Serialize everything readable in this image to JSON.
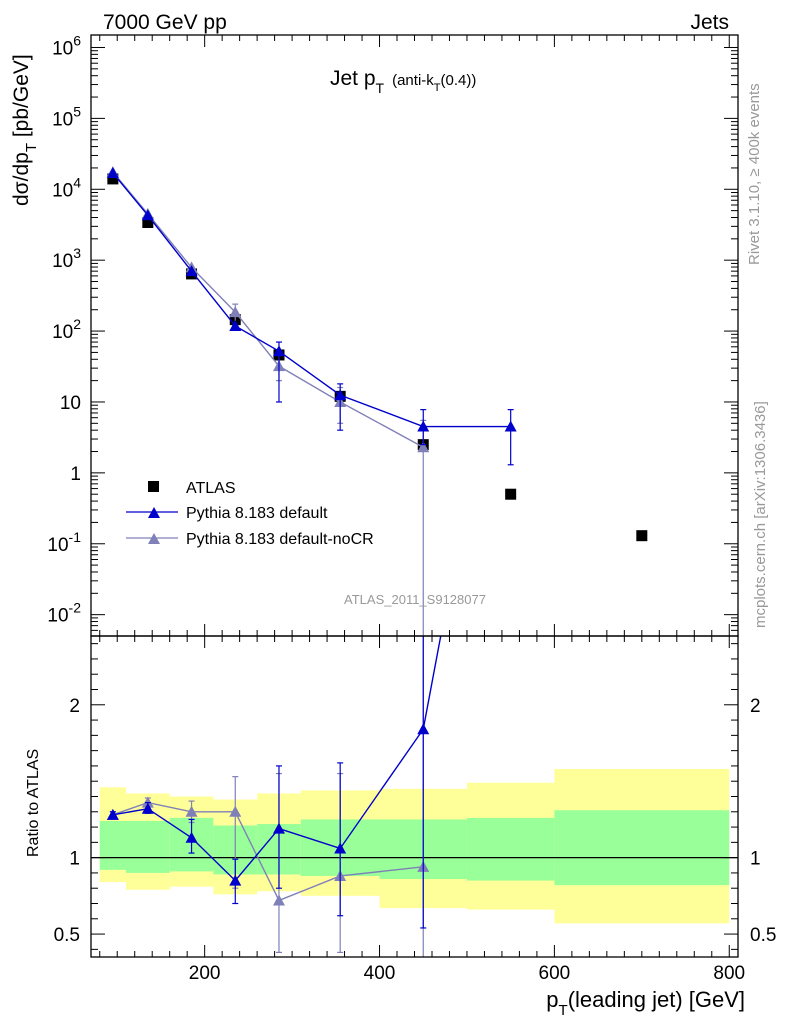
{
  "header": {
    "left": "7000 GeV pp",
    "right": "Jets"
  },
  "side_labels": {
    "rivet": "Rivet 3.1.10, ≥ 400k events",
    "mcplots": "mcplots.cern.ch [arXiv:1306.3436]"
  },
  "analysis_tag": "ATLAS_2011_S9128077",
  "colors": {
    "atlas": "#000000",
    "default": "#0000cc",
    "nocr": "#8080b8",
    "band_inner": "#99ff99",
    "band_outer": "#ffff99"
  },
  "chart_data": [
    {
      "type": "scatter",
      "title": "Jet p_T (anti-k_T(0.4))",
      "title_main": "Jet p",
      "title_sub": "T",
      "title_extra": "(anti-k",
      "title_extra_sub": "T",
      "title_extra_end": "(0.4))",
      "ylabel": "dσ/dp_T [pb/GeV]",
      "yscale": "log",
      "ylim": [
        0.005,
        1500000
      ],
      "xlim": [
        70,
        810
      ],
      "ytick_labels": [
        "10^-2",
        "10^-1",
        "1",
        "10",
        "10^2",
        "10^3",
        "10^4",
        "10^5",
        "10^6"
      ],
      "legend": {
        "position": "lower-left",
        "entries": [
          "ATLAS",
          "Pythia 8.183 default",
          "Pythia 8.183 default-noCR"
        ]
      },
      "series": [
        {
          "name": "ATLAS",
          "marker": "square",
          "x": [
            95,
            135,
            185,
            235,
            285,
            355,
            450,
            550,
            700
          ],
          "values": [
            14000,
            3400,
            640,
            145,
            46,
            12,
            2.5,
            0.5,
            0.13
          ]
        },
        {
          "name": "Pythia 8.183 default",
          "marker": "triangle",
          "x": [
            95,
            135,
            185,
            235,
            285,
            355,
            450,
            550
          ],
          "values": [
            17000,
            4300,
            700,
            118,
            52,
            12.5,
            4.5,
            4.5
          ],
          "err_low": [
            0,
            0,
            0,
            0,
            10,
            4,
            2.5,
            1.3
          ],
          "err_high": [
            0,
            0,
            0,
            0,
            70,
            18,
            7.8,
            7.8
          ]
        },
        {
          "name": "Pythia 8.183 default-noCR",
          "marker": "triangle",
          "x": [
            95,
            135,
            185,
            235,
            285,
            355,
            450
          ],
          "values": [
            17500,
            4500,
            790,
            185,
            32,
            10,
            2.3
          ],
          "err_low": [
            0,
            0,
            0,
            120,
            20,
            5,
            0.0001
          ],
          "err_high": [
            0,
            0,
            0,
            240,
            50,
            16,
            5.5
          ]
        }
      ]
    },
    {
      "type": "scatter",
      "ylabel": "Ratio to ATLAS",
      "xlabel": "p_T(leading jet) [GeV]",
      "xlabel_main": "p",
      "xlabel_sub": "T",
      "xlabel_end": "(leading jet) [GeV]",
      "ylim": [
        0.35,
        2.45
      ],
      "xlim": [
        70,
        810
      ],
      "xticks": [
        200,
        400,
        600,
        800
      ],
      "xtick_labels": [
        "200",
        "400",
        "600",
        "800"
      ],
      "yticks": [
        0.5,
        1,
        2
      ],
      "ytick_labels": [
        "0.5",
        "1",
        "2"
      ],
      "reference": 1,
      "bands": {
        "x_edges": [
          80,
          110,
          160,
          210,
          260,
          310,
          400,
          500,
          600,
          800
        ],
        "outer_low": [
          0.84,
          0.79,
          0.81,
          0.76,
          0.78,
          0.75,
          0.67,
          0.66,
          0.57
        ],
        "outer_high": [
          1.46,
          1.42,
          1.4,
          1.38,
          1.42,
          1.44,
          1.45,
          1.49,
          1.58
        ],
        "inner_low": [
          0.92,
          0.9,
          0.91,
          0.89,
          0.89,
          0.88,
          0.86,
          0.85,
          0.82
        ],
        "inner_high": [
          1.24,
          1.24,
          1.26,
          1.21,
          1.22,
          1.25,
          1.25,
          1.26,
          1.31
        ]
      },
      "series": [
        {
          "name": "Pythia 8.183 default",
          "x": [
            95,
            135,
            185,
            235,
            285,
            355,
            450,
            470
          ],
          "values": [
            1.28,
            1.32,
            1.13,
            0.85,
            1.19,
            1.06,
            1.84,
            2.45
          ],
          "markers": [
            true,
            true,
            true,
            true,
            true,
            true,
            true,
            false
          ],
          "err_low": [
            1.26,
            1.29,
            1.03,
            0.7,
            0.8,
            0.62,
            0.54,
            null
          ],
          "err_high": [
            1.3,
            1.36,
            1.25,
            0.99,
            1.6,
            1.62,
            2.45,
            null
          ]
        },
        {
          "name": "Pythia 8.183 default-noCR",
          "x": [
            95,
            135,
            185,
            235,
            285,
            355,
            450
          ],
          "values": [
            1.28,
            1.36,
            1.3,
            1.3,
            0.72,
            0.88,
            0.94
          ],
          "err_low": [
            1.26,
            1.33,
            1.23,
            0.8,
            0.38,
            0.38,
            0.35
          ],
          "err_high": [
            1.3,
            1.39,
            1.37,
            1.53,
            1.55,
            1.55,
            2.45
          ]
        }
      ]
    }
  ]
}
